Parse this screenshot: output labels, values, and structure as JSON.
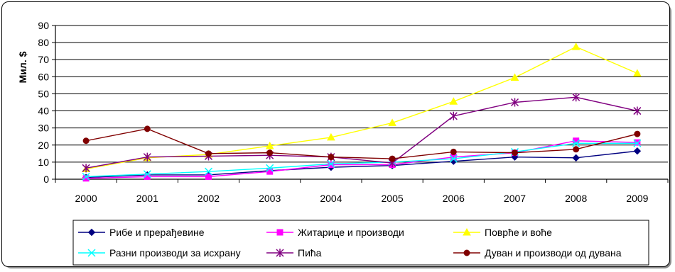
{
  "chart_data": {
    "type": "line",
    "title": "",
    "xlabel": "",
    "ylabel": "Мил. $",
    "ylim": [
      0,
      90
    ],
    "yticks": [
      "0",
      "10",
      "20",
      "30",
      "40",
      "50",
      "60",
      "70",
      "80",
      "90"
    ],
    "categories": [
      "2000",
      "2001",
      "2002",
      "2003",
      "2004",
      "2005",
      "2006",
      "2007",
      "2008",
      "2009"
    ],
    "grid": true,
    "legend_position": "bottom",
    "series": [
      {
        "name": "Рибе и прерађевине",
        "color": "#000080",
        "marker": "diamond",
        "values": [
          1,
          2.5,
          2.5,
          5,
          7,
          8,
          10.5,
          13,
          12.5,
          16.5
        ]
      },
      {
        "name": "Житарице и производи",
        "color": "#ff00ff",
        "marker": "square",
        "values": [
          0.5,
          1.5,
          1.5,
          4.5,
          8.5,
          8.5,
          13,
          15.5,
          22.5,
          21.5
        ]
      },
      {
        "name": "Поврће и воће",
        "color": "#ffff00",
        "marker": "triangle",
        "values": [
          6,
          12.5,
          14.5,
          19.5,
          24.5,
          33,
          45.5,
          59.5,
          77.5,
          62
        ]
      },
      {
        "name": "Разни производи за исхрану",
        "color": "#00ffff",
        "marker": "x",
        "values": [
          1.5,
          3,
          4.5,
          6.5,
          9,
          10,
          12,
          16,
          21,
          21
        ]
      },
      {
        "name": "Пића",
        "color": "#800080",
        "marker": "star",
        "values": [
          6.5,
          13,
          13.5,
          14,
          13,
          9.5,
          37,
          45,
          48,
          40
        ]
      },
      {
        "name": "Дуван и производи од дувана",
        "color": "#800000",
        "marker": "circle",
        "values": [
          22.5,
          29.5,
          15,
          15.5,
          13,
          12,
          16,
          15.5,
          17.5,
          26.5
        ]
      }
    ]
  }
}
